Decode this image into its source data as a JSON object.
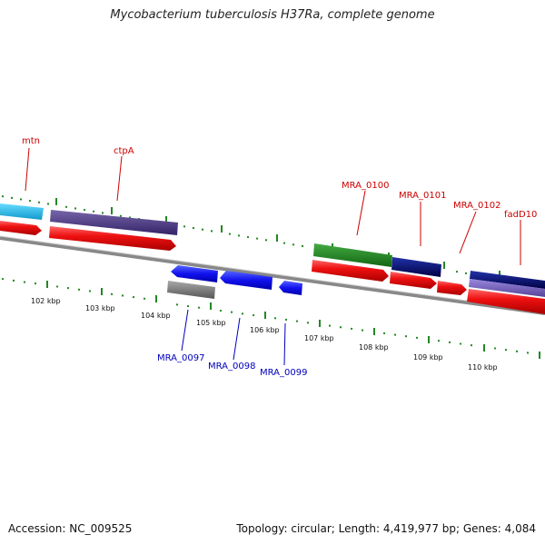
{
  "title": "Mycobacterium tuberculosis H37Ra, complete genome",
  "footer": {
    "accession": "Accession: NC_009525",
    "summary": "Topology: circular; Length: 4,419,977 bp; Genes: 4,084"
  },
  "colors": {
    "forward_label": "#cc0000",
    "reverse_label": "#0000bb",
    "cds": "#ee1111",
    "tick": "#228822",
    "backbone": "#888888"
  },
  "ticks": [
    "102 kbp",
    "103 kbp",
    "104 kbp",
    "105 kbp",
    "106 kbp",
    "107 kbp",
    "108 kbp",
    "109 kbp",
    "110 kbp"
  ],
  "forward_labels": [
    "mtn",
    "ctpA",
    "MRA_0100",
    "MRA_0101",
    "MRA_0102",
    "fadD10"
  ],
  "reverse_labels": [
    "MRA_0097",
    "MRA_0098",
    "MRA_0099"
  ]
}
